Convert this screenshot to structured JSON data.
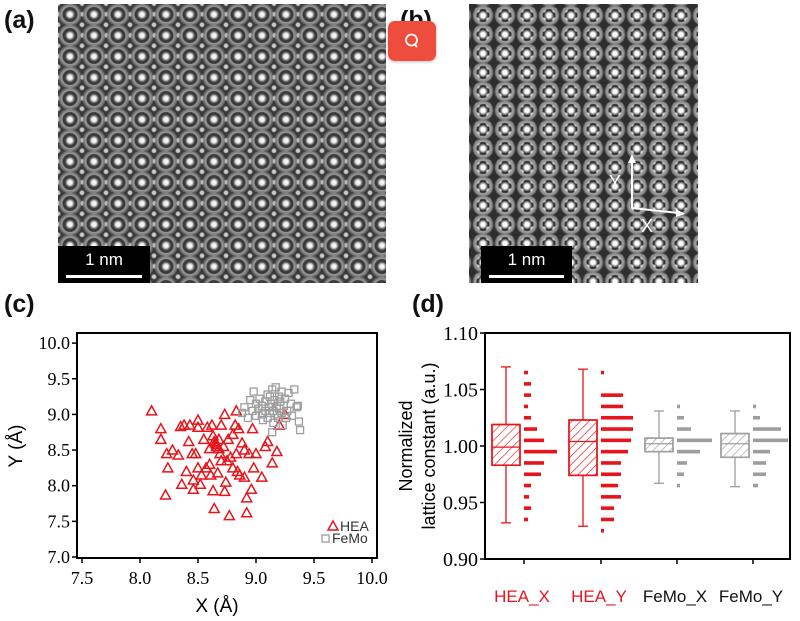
{
  "panels": {
    "a": "(a)",
    "b": "(b)",
    "c": "(c)",
    "d": "(d)"
  },
  "images": {
    "a": {
      "scale_bar": "1 nm"
    },
    "b": {
      "scale_bar": "1 nm",
      "axis_y": "Y",
      "axis_x": "X"
    }
  },
  "search_button": {
    "icon": "search-icon"
  },
  "colors": {
    "hea": "#e8141b",
    "femo": "#9e9e9e",
    "search": "#ee4d3d"
  },
  "chart_data": [
    {
      "type": "scatter",
      "xlabel": "X (Å)",
      "ylabel": "Y (Å)",
      "xlim": [
        7.5,
        10.0
      ],
      "ylim": [
        7.0,
        10.0
      ],
      "xticks": [
        "7.5",
        "8.0",
        "8.5",
        "9.0",
        "9.5",
        "10.0"
      ],
      "yticks": [
        "7.0",
        "7.5",
        "8.0",
        "8.5",
        "9.0",
        "9.5",
        "10.0"
      ],
      "legend_position": "bottom-right",
      "series": [
        {
          "name": "HEA",
          "marker": "triangle",
          "points": [
            [
              8.1,
              9.05
            ],
            [
              8.18,
              8.8
            ],
            [
              8.18,
              8.65
            ],
            [
              8.22,
              7.87
            ],
            [
              8.23,
              8.45
            ],
            [
              8.24,
              8.25
            ],
            [
              8.28,
              8.5
            ],
            [
              8.33,
              8.43
            ],
            [
              8.35,
              8.83
            ],
            [
              8.36,
              8.02
            ],
            [
              8.38,
              8.85
            ],
            [
              8.4,
              8.2
            ],
            [
              8.42,
              8.62
            ],
            [
              8.43,
              8.85
            ],
            [
              8.45,
              8.45
            ],
            [
              8.46,
              8.08
            ],
            [
              8.46,
              7.95
            ],
            [
              8.48,
              8.45
            ],
            [
              8.5,
              8.92
            ],
            [
              8.5,
              8.25
            ],
            [
              8.5,
              8.82
            ],
            [
              8.52,
              8.02
            ],
            [
              8.53,
              8.15
            ],
            [
              8.55,
              8.65
            ],
            [
              8.57,
              8.25
            ],
            [
              8.58,
              8.82
            ],
            [
              8.6,
              8.3
            ],
            [
              8.6,
              8.52
            ],
            [
              8.61,
              8.15
            ],
            [
              8.62,
              8.85
            ],
            [
              8.63,
              8.7
            ],
            [
              8.63,
              7.93
            ],
            [
              8.64,
              7.68
            ],
            [
              8.65,
              8.6
            ],
            [
              8.66,
              8.55
            ],
            [
              8.67,
              8.18
            ],
            [
              8.68,
              8.65
            ],
            [
              8.69,
              8.45
            ],
            [
              8.7,
              8.85
            ],
            [
              8.7,
              8.35
            ],
            [
              8.72,
              8.55
            ],
            [
              8.73,
              9.0
            ],
            [
              8.73,
              7.92
            ],
            [
              8.74,
              8.05
            ],
            [
              8.75,
              8.35
            ],
            [
              8.76,
              8.65
            ],
            [
              8.77,
              7.58
            ],
            [
              8.78,
              8.4
            ],
            [
              8.8,
              8.72
            ],
            [
              8.8,
              8.25
            ],
            [
              8.82,
              8.85
            ],
            [
              8.83,
              9.05
            ],
            [
              8.83,
              8.45
            ],
            [
              8.84,
              8.2
            ],
            [
              8.85,
              8.8
            ],
            [
              8.86,
              8.15
            ],
            [
              8.88,
              8.6
            ],
            [
              8.9,
              8.5
            ],
            [
              8.9,
              8.12
            ],
            [
              8.92,
              7.62
            ],
            [
              8.92,
              7.83
            ],
            [
              8.94,
              8.45
            ],
            [
              8.96,
              7.95
            ],
            [
              8.97,
              8.8
            ],
            [
              8.98,
              8.25
            ],
            [
              9.0,
              8.45
            ],
            [
              9.05,
              8.12
            ],
            [
              9.08,
              8.55
            ],
            [
              9.1,
              8.62
            ],
            [
              9.14,
              8.32
            ],
            [
              9.18,
              8.48
            ],
            [
              9.2,
              8.85
            ],
            [
              9.25,
              9.0
            ],
            [
              8.66,
              8.58
            ],
            [
              8.68,
              8.52
            ],
            [
              8.64,
              8.62
            ]
          ]
        },
        {
          "name": "FeMo",
          "marker": "square",
          "points": [
            [
              8.88,
              9.02
            ],
            [
              8.9,
              9.1
            ],
            [
              8.93,
              8.95
            ],
            [
              8.95,
              9.2
            ],
            [
              8.97,
              9.05
            ],
            [
              8.98,
              9.32
            ],
            [
              9.0,
              9.15
            ],
            [
              9.0,
              8.98
            ],
            [
              9.02,
              9.08
            ],
            [
              9.03,
              9.22
            ],
            [
              9.05,
              9.0
            ],
            [
              9.05,
              9.12
            ],
            [
              9.06,
              8.92
            ],
            [
              9.08,
              9.18
            ],
            [
              9.08,
              9.05
            ],
            [
              9.1,
              9.28
            ],
            [
              9.1,
              8.95
            ],
            [
              9.11,
              9.1
            ],
            [
              9.12,
              9.02
            ],
            [
              9.13,
              9.15
            ],
            [
              9.14,
              9.35
            ],
            [
              9.15,
              8.88
            ],
            [
              9.15,
              9.05
            ],
            [
              9.16,
              9.2
            ],
            [
              9.17,
              9.38
            ],
            [
              9.18,
              9.0
            ],
            [
              9.18,
              9.12
            ],
            [
              9.19,
              8.95
            ],
            [
              9.2,
              9.25
            ],
            [
              9.2,
              9.08
            ],
            [
              9.21,
              9.18
            ],
            [
              9.22,
              9.32
            ],
            [
              9.22,
              9.02
            ],
            [
              9.23,
              8.85
            ],
            [
              9.24,
              9.12
            ],
            [
              9.25,
              9.22
            ],
            [
              9.26,
              8.95
            ],
            [
              9.27,
              9.05
            ],
            [
              9.28,
              9.3
            ],
            [
              9.3,
              9.15
            ],
            [
              9.31,
              8.98
            ],
            [
              9.33,
              9.35
            ],
            [
              9.35,
              9.1
            ],
            [
              9.36,
              9.12
            ],
            [
              9.37,
              8.9
            ],
            [
              9.38,
              8.78
            ],
            [
              9.14,
              8.75
            ],
            [
              9.12,
              9.25
            ]
          ]
        }
      ]
    },
    {
      "type": "box",
      "ylabel_line1": "Normalized",
      "ylabel_line2": "lattice constant (a.u.)",
      "ylim": [
        0.9,
        1.1
      ],
      "yticks": [
        "0.90",
        "0.95",
        "1.00",
        "1.05",
        "1.10"
      ],
      "categories": [
        "HEA_X",
        "HEA_Y",
        "FeMo_X",
        "FeMo_Y"
      ],
      "boxes": [
        {
          "min": 0.932,
          "q1": 0.983,
          "median": 0.999,
          "q3": 1.019,
          "max": 1.07,
          "group": "HEA"
        },
        {
          "min": 0.929,
          "q1": 0.974,
          "median": 1.004,
          "q3": 1.023,
          "max": 1.068,
          "group": "HEA"
        },
        {
          "min": 0.967,
          "q1": 0.995,
          "median": 1.002,
          "q3": 1.007,
          "max": 1.031,
          "group": "FeMo"
        },
        {
          "min": 0.964,
          "q1": 0.99,
          "median": 1.002,
          "q3": 1.011,
          "max": 1.031,
          "group": "FeMo"
        }
      ],
      "histograms": [
        {
          "bins": [
            1.065,
            1.055,
            1.045,
            1.035,
            1.025,
            1.015,
            1.005,
            0.995,
            0.985,
            0.975,
            0.965,
            0.955,
            0.945,
            0.935
          ],
          "counts": [
            4,
            7,
            7,
            4,
            7,
            13,
            20,
            33,
            20,
            17,
            7,
            5,
            7,
            4
          ]
        },
        {
          "bins": [
            1.065,
            1.045,
            1.035,
            1.025,
            1.015,
            1.005,
            0.995,
            0.985,
            0.975,
            0.965,
            0.955,
            0.945,
            0.935,
            0.925
          ],
          "counts": [
            3,
            22,
            22,
            32,
            32,
            30,
            27,
            20,
            20,
            17,
            20,
            13,
            13,
            3
          ]
        },
        {
          "bins": [
            1.035,
            1.025,
            1.015,
            1.005,
            0.995,
            0.985,
            0.975,
            0.965
          ],
          "counts": [
            3,
            7,
            14,
            35,
            23,
            10,
            7,
            3
          ]
        },
        {
          "bins": [
            1.035,
            1.025,
            1.015,
            1.005,
            0.995,
            0.985,
            0.975,
            0.965
          ],
          "counts": [
            3,
            7,
            28,
            35,
            17,
            13,
            13,
            5
          ]
        }
      ]
    }
  ]
}
